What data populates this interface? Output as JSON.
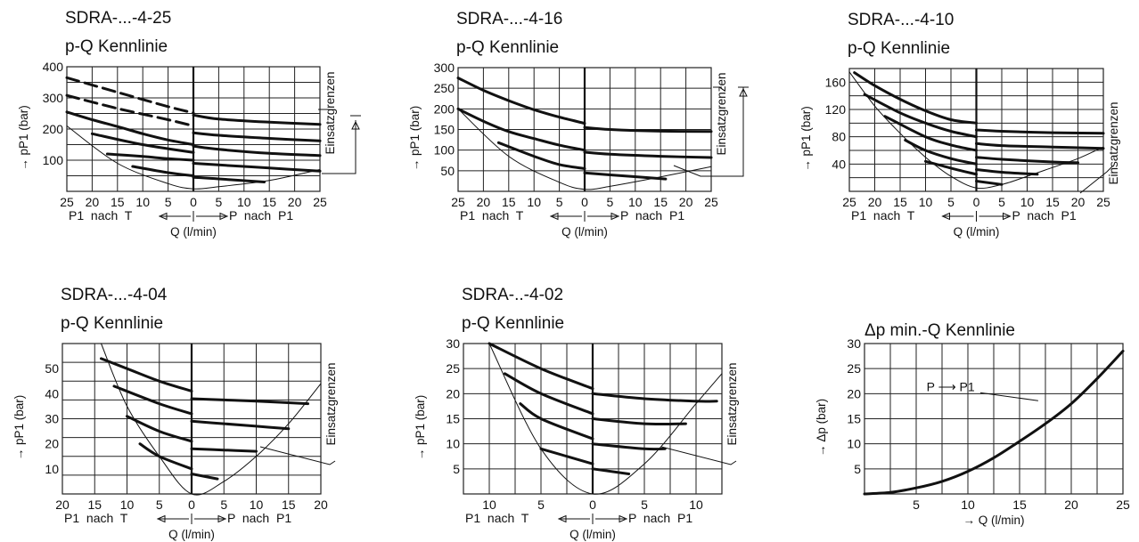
{
  "chart_data": [
    {
      "type": "line",
      "title": "SDRA-...-4-25",
      "subtitle": "p-Q Kennlinie",
      "ylabel": "→ pP1 (bar)",
      "xlabel": "Q (l/min)",
      "x_sub_left": "P1  nach  T",
      "x_sub_right": "P  nach  P1",
      "side_label": "Einsatzgrenzen",
      "xlim": [
        -25,
        25
      ],
      "ylim": [
        0,
        400
      ],
      "x_ticks": [
        -25,
        -20,
        -15,
        -10,
        -5,
        0,
        5,
        10,
        15,
        20,
        25
      ],
      "x_tick_labels": [
        "25",
        "20",
        "15",
        "10",
        "5",
        "0",
        "5",
        "10",
        "15",
        "20",
        "25"
      ],
      "y_ticks": [
        100,
        200,
        300,
        400
      ],
      "y_tick_labels": [
        "100",
        "200",
        "300",
        "400"
      ],
      "grid": true,
      "series": [
        {
          "style": "dashed",
          "x": [
            -25,
            -15,
            -5,
            0
          ],
          "y": [
            365,
            318,
            272,
            252
          ]
        },
        {
          "x": [
            0,
            5,
            15,
            25
          ],
          "y": [
            245,
            232,
            222,
            215
          ]
        },
        {
          "style": "dashed",
          "x": [
            -25,
            -15,
            -5,
            0
          ],
          "y": [
            308,
            266,
            230,
            210
          ]
        },
        {
          "x": [
            -25,
            -20,
            -15,
            -10,
            -5,
            0
          ],
          "y": [
            255,
            230,
            208,
            185,
            165,
            150
          ]
        },
        {
          "x": [
            0,
            5,
            15,
            25
          ],
          "y": [
            188,
            180,
            170,
            162
          ]
        },
        {
          "x": [
            -20,
            -10,
            0
          ],
          "y": [
            185,
            150,
            125
          ]
        },
        {
          "x": [
            0,
            5,
            15,
            25
          ],
          "y": [
            145,
            135,
            122,
            115
          ]
        },
        {
          "x": [
            -17,
            -10,
            -5,
            0
          ],
          "y": [
            120,
            112,
            105,
            100
          ]
        },
        {
          "x": [
            0,
            5,
            15,
            25
          ],
          "y": [
            90,
            85,
            75,
            65
          ]
        },
        {
          "x": [
            -12,
            -5,
            0
          ],
          "y": [
            80,
            60,
            50
          ]
        },
        {
          "x": [
            0,
            5,
            14
          ],
          "y": [
            45,
            40,
            30
          ]
        },
        {
          "style": "thin",
          "x": [
            -25,
            -15,
            -5,
            0,
            5,
            15,
            25
          ],
          "y": [
            210,
            90,
            25,
            8,
            15,
            35,
            70
          ]
        }
      ]
    },
    {
      "type": "line",
      "title": "SDRA-...-4-16",
      "subtitle": "p-Q Kennlinie",
      "ylabel": "→ pP1 (bar)",
      "xlabel": "Q (l/min)",
      "x_sub_left": "P1  nach  T",
      "x_sub_right": "P  nach  P1",
      "side_label": "Einsatzgrenzen",
      "xlim": [
        -25,
        25
      ],
      "ylim": [
        0,
        300
      ],
      "x_ticks": [
        -25,
        -20,
        -15,
        -10,
        -5,
        0,
        5,
        10,
        15,
        20,
        25
      ],
      "x_tick_labels": [
        "25",
        "20",
        "15",
        "10",
        "5",
        "0",
        "5",
        "10",
        "15",
        "20",
        "25"
      ],
      "y_ticks": [
        50,
        100,
        150,
        200,
        250,
        300
      ],
      "y_tick_labels": [
        "50",
        "100",
        "150",
        "200",
        "250",
        "300"
      ],
      "grid": true,
      "series": [
        {
          "x": [
            -25,
            -20,
            -15,
            -10,
            -5,
            0
          ],
          "y": [
            275,
            245,
            220,
            198,
            180,
            165
          ]
        },
        {
          "x": [
            0,
            5,
            15,
            25
          ],
          "y": [
            155,
            150,
            146,
            145
          ]
        },
        {
          "x": [
            -25,
            -20,
            -15,
            -10,
            -5,
            0
          ],
          "y": [
            200,
            170,
            145,
            128,
            112,
            100
          ]
        },
        {
          "x": [
            0,
            5,
            15,
            25
          ],
          "y": [
            95,
            90,
            85,
            82
          ]
        },
        {
          "x": [
            -17,
            -10,
            -5,
            0
          ],
          "y": [
            118,
            85,
            65,
            55
          ]
        },
        {
          "x": [
            0,
            5,
            16
          ],
          "y": [
            45,
            40,
            30
          ]
        },
        {
          "style": "thin",
          "x": [
            -25,
            -15,
            -5,
            0,
            5,
            15,
            25
          ],
          "y": [
            200,
            85,
            22,
            5,
            12,
            35,
            60
          ]
        }
      ]
    },
    {
      "type": "line",
      "title": "SDRA-...-4-10",
      "subtitle": "p-Q Kennlinie",
      "ylabel": "→ pP1 (bar)",
      "xlabel": "Q (l/min)",
      "x_sub_left": "P1  nach  T",
      "x_sub_right": "P  nach  P1",
      "side_label": "Einsatzgrenzen",
      "xlim": [
        -25,
        25
      ],
      "ylim": [
        0,
        180
      ],
      "x_ticks": [
        -25,
        -20,
        -15,
        -10,
        -5,
        0,
        5,
        10,
        15,
        20,
        25
      ],
      "x_tick_labels": [
        "25",
        "20",
        "15",
        "10",
        "5",
        "0",
        "5",
        "10",
        "15",
        "20",
        "25"
      ],
      "y_ticks": [
        40,
        80,
        120,
        160
      ],
      "y_tick_labels": [
        "40",
        "80",
        "120",
        "160"
      ],
      "grid": true,
      "series": [
        {
          "x": [
            -24,
            -20,
            -15,
            -10,
            -5,
            0
          ],
          "y": [
            174,
            155,
            135,
            118,
            105,
            100
          ]
        },
        {
          "x": [
            0,
            5,
            15,
            25
          ],
          "y": [
            90,
            88,
            86,
            85
          ]
        },
        {
          "x": [
            -22,
            -15,
            -10,
            -5,
            0
          ],
          "y": [
            142,
            115,
            100,
            88,
            80
          ]
        },
        {
          "x": [
            0,
            5,
            15,
            25
          ],
          "y": [
            70,
            67,
            65,
            63
          ]
        },
        {
          "x": [
            -18,
            -10,
            -5,
            0
          ],
          "y": [
            110,
            80,
            68,
            60
          ]
        },
        {
          "x": [
            0,
            5,
            15,
            20
          ],
          "y": [
            50,
            47,
            43,
            42
          ]
        },
        {
          "x": [
            -14,
            -10,
            -5,
            0
          ],
          "y": [
            75,
            60,
            48,
            40
          ]
        },
        {
          "x": [
            0,
            5,
            12
          ],
          "y": [
            32,
            28,
            25
          ]
        },
        {
          "x": [
            -10,
            -5,
            0
          ],
          "y": [
            44,
            34,
            25
          ]
        },
        {
          "x": [
            0,
            5
          ],
          "y": [
            15,
            10
          ]
        },
        {
          "style": "thin",
          "x": [
            -25,
            -20,
            -15,
            -10,
            -5,
            0,
            5,
            10,
            15,
            20,
            25
          ],
          "y": [
            175,
            125,
            85,
            50,
            22,
            5,
            10,
            22,
            35,
            48,
            65
          ]
        }
      ]
    },
    {
      "type": "line",
      "title": "SDRA-...-4-04",
      "subtitle": "p-Q Kennlinie",
      "ylabel": "→ pP1 (bar)",
      "xlabel": "Q (l/min)",
      "x_sub_left": "P1  nach  T",
      "x_sub_right": "P  nach  P1",
      "side_label": "Einsatzgrenzen",
      "xlim": [
        -20,
        20
      ],
      "ylim": [
        0,
        60
      ],
      "x_ticks": [
        -20,
        -15,
        -10,
        -5,
        0,
        5,
        10,
        15,
        20
      ],
      "x_tick_labels": [
        "20",
        "15",
        "10",
        "5",
        "0",
        "5",
        "10",
        "15",
        "20"
      ],
      "y_ticks": [
        10,
        20,
        30,
        40,
        50
      ],
      "y_tick_labels": [
        "10",
        "20",
        "30",
        "40",
        "50"
      ],
      "grid": true,
      "series": [
        {
          "x": [
            -14,
            -10,
            -5,
            0
          ],
          "y": [
            54,
            50,
            45,
            41
          ]
        },
        {
          "x": [
            0,
            5,
            10,
            18
          ],
          "y": [
            38,
            37.5,
            37,
            36
          ]
        },
        {
          "x": [
            -12,
            -5,
            0
          ],
          "y": [
            43,
            36,
            32
          ]
        },
        {
          "x": [
            0,
            5,
            10,
            15
          ],
          "y": [
            29,
            28,
            27,
            26
          ]
        },
        {
          "x": [
            -10,
            -5,
            0
          ],
          "y": [
            31,
            25,
            21
          ]
        },
        {
          "x": [
            0,
            5,
            10
          ],
          "y": [
            18,
            17.5,
            17
          ]
        },
        {
          "x": [
            -8,
            -5,
            0
          ],
          "y": [
            20,
            15,
            10
          ]
        },
        {
          "x": [
            0,
            4
          ],
          "y": [
            8,
            6
          ]
        },
        {
          "style": "thin",
          "x": [
            -14,
            -10,
            -5,
            0,
            5,
            10,
            15,
            20
          ],
          "y": [
            60,
            35,
            15,
            0,
            5,
            15,
            28,
            44
          ]
        }
      ]
    },
    {
      "type": "line",
      "title": "SDRA-..-4-02",
      "subtitle": "p-Q Kennlinie",
      "ylabel": "→ pP1 (bar)",
      "xlabel": "Q (l/min)",
      "x_sub_left": "P1  nach  T",
      "x_sub_right": "P  nach  P1",
      "side_label": "Einsatzgrenzen",
      "xlim": [
        -12.5,
        12.5
      ],
      "ylim": [
        0,
        30
      ],
      "x_ticks": [
        -10,
        -5,
        0,
        5,
        10
      ],
      "x_tick_labels": [
        "10",
        "5",
        "0",
        "5",
        "10"
      ],
      "y_ticks": [
        5,
        10,
        15,
        20,
        25,
        30
      ],
      "y_tick_labels": [
        "5",
        "10",
        "15",
        "20",
        "25",
        "30"
      ],
      "grid": true,
      "series": [
        {
          "x": [
            -10,
            -5,
            0
          ],
          "y": [
            30,
            25,
            21
          ]
        },
        {
          "x": [
            0,
            5,
            10,
            12
          ],
          "y": [
            20,
            19,
            18.5,
            18.5
          ]
        },
        {
          "x": [
            -8.5,
            -5,
            0
          ],
          "y": [
            24,
            20,
            16
          ]
        },
        {
          "x": [
            0,
            5,
            9
          ],
          "y": [
            15,
            14,
            14
          ]
        },
        {
          "x": [
            -7,
            -5,
            0
          ],
          "y": [
            18,
            15,
            11
          ]
        },
        {
          "x": [
            0,
            5,
            7
          ],
          "y": [
            10,
            9,
            9
          ]
        },
        {
          "x": [
            -5,
            0
          ],
          "y": [
            9,
            6
          ]
        },
        {
          "x": [
            0,
            3.5
          ],
          "y": [
            5,
            4
          ]
        },
        {
          "style": "thin",
          "x": [
            -10,
            -5,
            0,
            5,
            10,
            12.5
          ],
          "y": [
            30,
            9,
            0,
            6,
            18,
            24
          ]
        }
      ]
    },
    {
      "type": "line",
      "title": "Δp min.-Q Kennlinie",
      "ylabel": "→ Δp (bar)",
      "xlabel": "→ Q (l/min)",
      "annotation": "P ⟶ P1",
      "xlim": [
        0,
        25
      ],
      "ylim": [
        0,
        30
      ],
      "x_ticks": [
        5,
        10,
        15,
        20,
        25
      ],
      "x_tick_labels": [
        "5",
        "10",
        "15",
        "20",
        "25"
      ],
      "y_ticks": [
        5,
        10,
        15,
        20,
        25,
        30
      ],
      "y_tick_labels": [
        "5",
        "10",
        "15",
        "20",
        "25",
        "30"
      ],
      "grid": true,
      "series": [
        {
          "name": "P ⟶ P1",
          "x": [
            0,
            2.5,
            5,
            7.5,
            10,
            12.5,
            15,
            17.5,
            20,
            22.5,
            25
          ],
          "y": [
            0,
            0.3,
            1.2,
            2.5,
            4.5,
            7.2,
            10.5,
            14,
            18,
            23,
            28.5
          ]
        }
      ]
    }
  ]
}
